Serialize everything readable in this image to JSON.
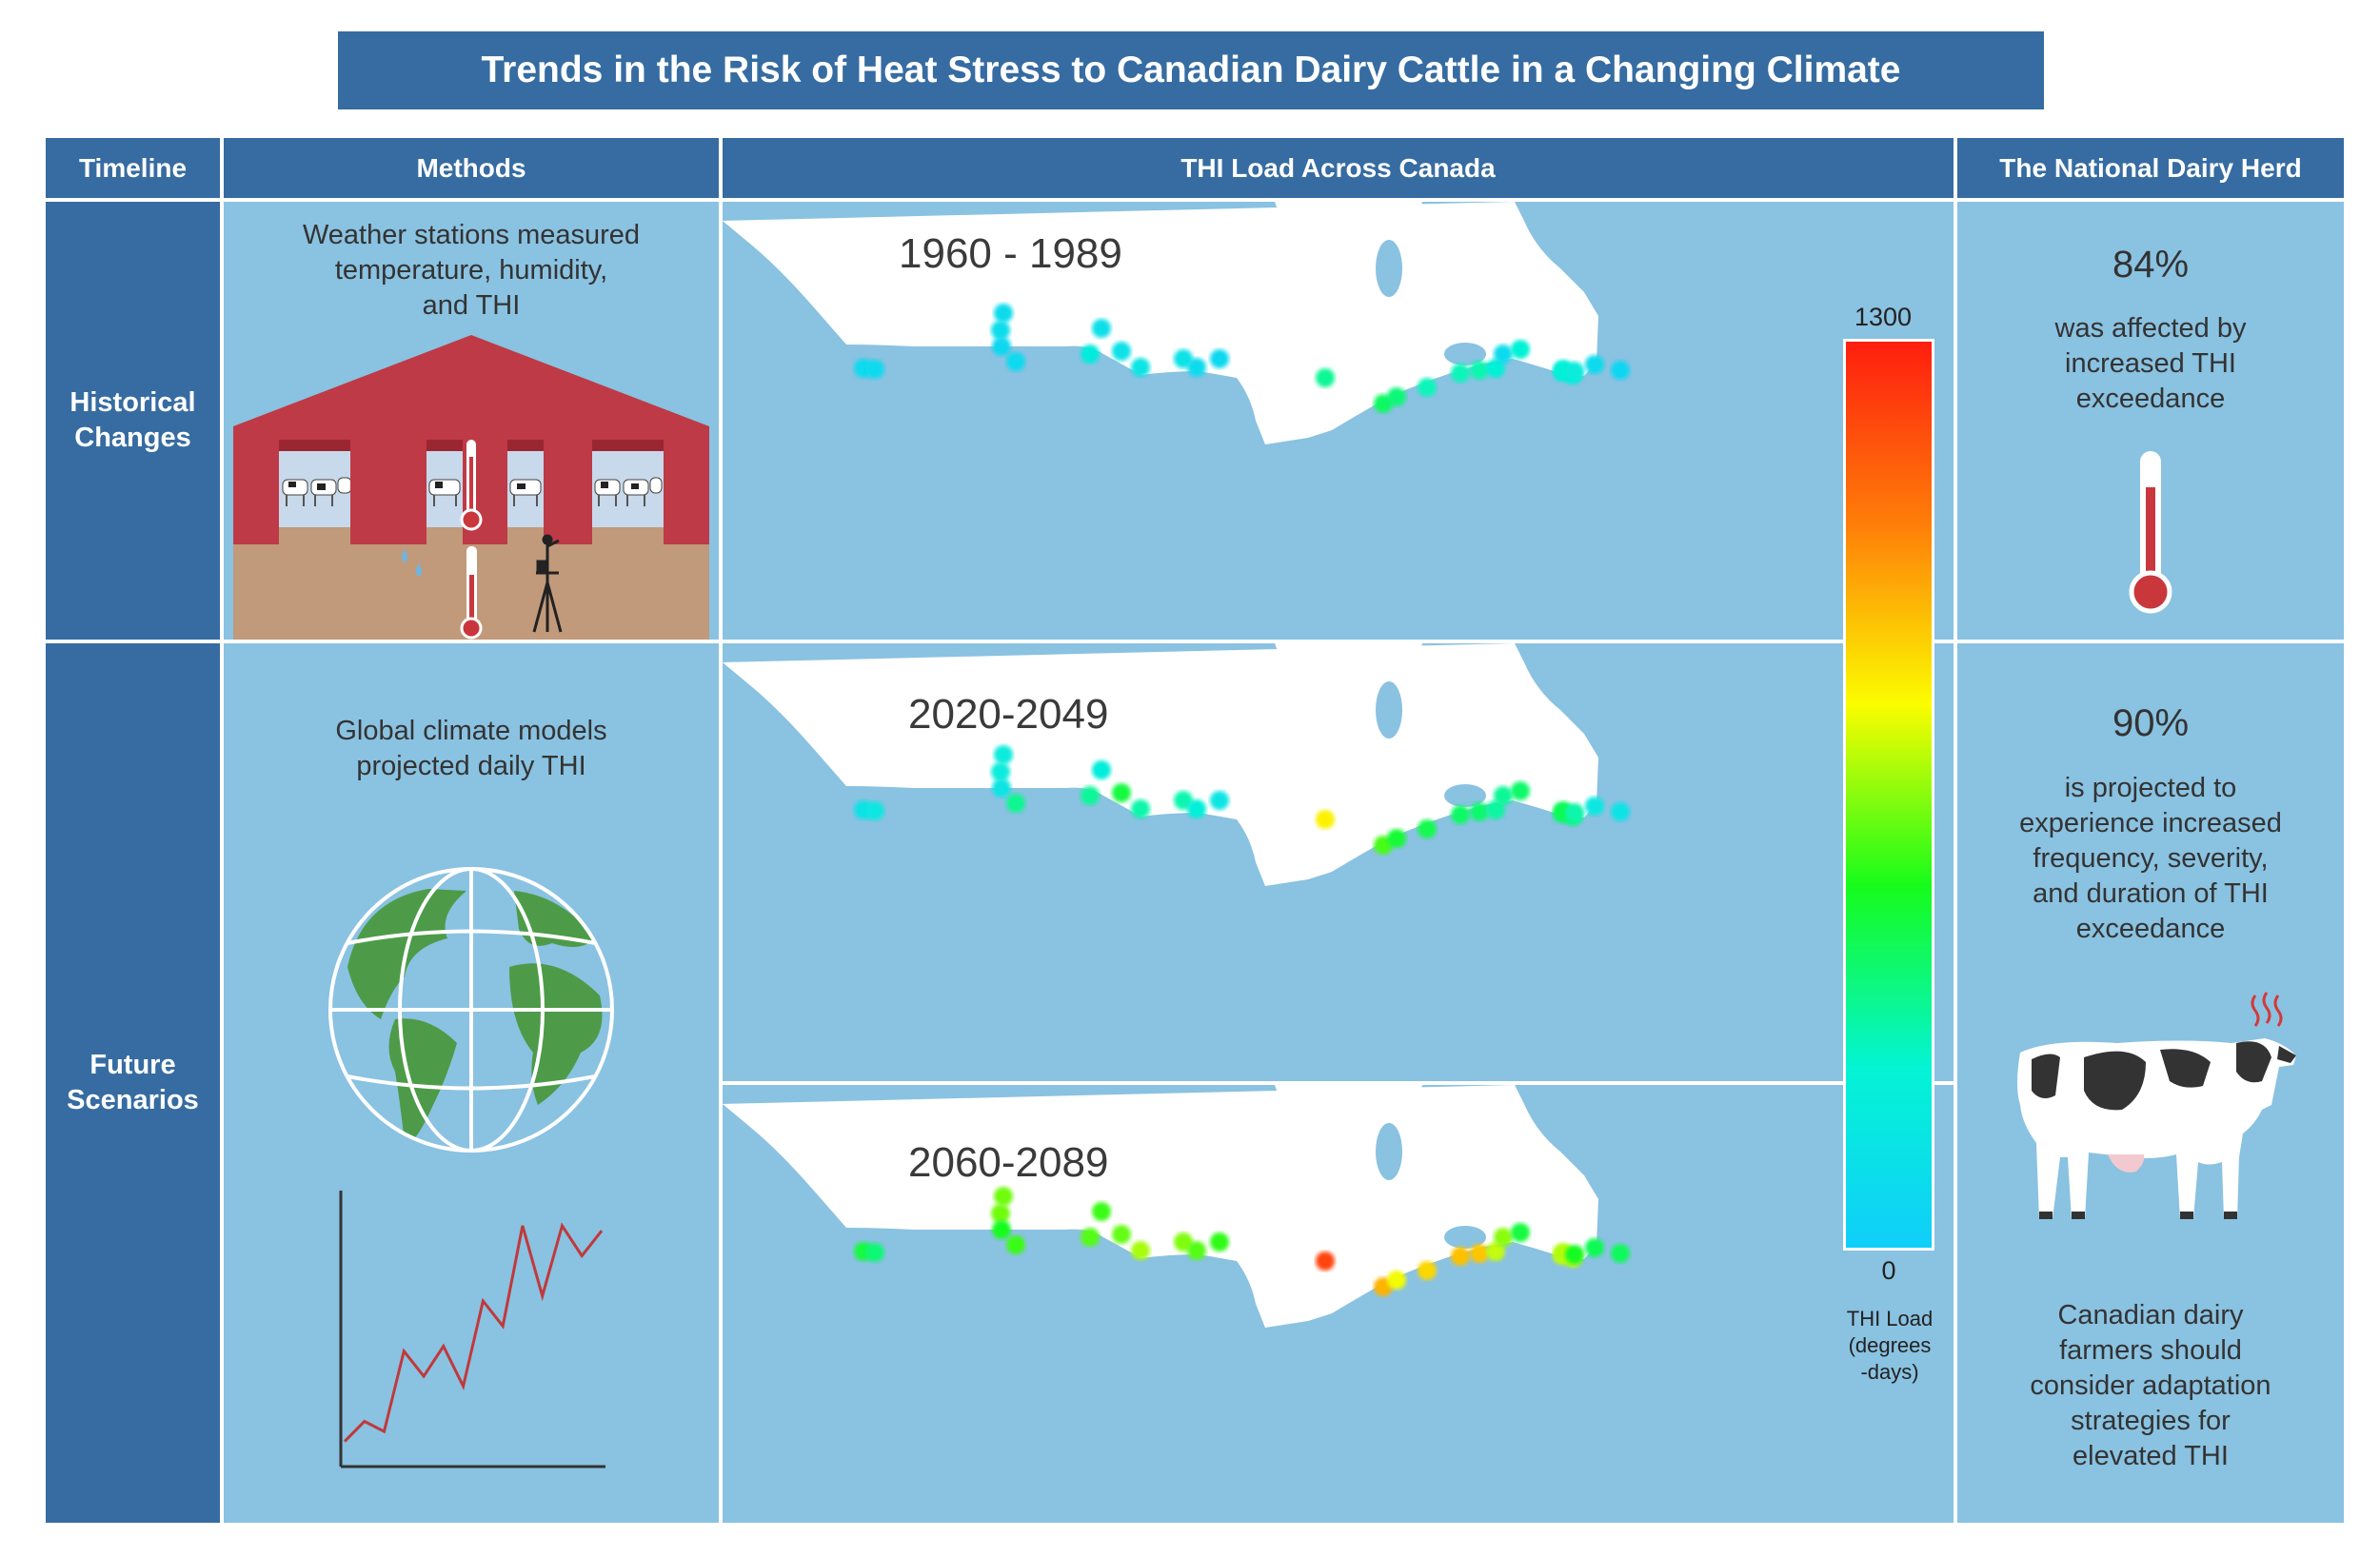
{
  "title": "Trends in the Risk of Heat Stress to Canadian Dairy Cattle in a Changing Climate",
  "headers": {
    "timeline": "Timeline",
    "methods": "Methods",
    "thi_load": "THI Load Across Canada",
    "herd": "The National Dairy Herd"
  },
  "rows": {
    "historical": [
      "Historical",
      "Changes"
    ],
    "future": [
      "Future",
      "Scenarios"
    ]
  },
  "methods": {
    "historical": [
      "Weather stations measured",
      "temperature, humidity,",
      "and THI"
    ],
    "future": [
      "Global climate models",
      "projected daily THI"
    ]
  },
  "maps": {
    "periods": [
      "1960 - 1989",
      "2020-2049",
      "2060-2089"
    ],
    "station_thi": {
      "1960 - 1989": [
        80,
        82,
        92,
        100,
        68,
        80,
        118,
        208,
        130,
        148,
        138,
        90,
        70,
        350,
        420,
        390,
        295,
        298,
        312,
        240,
        90,
        245,
        218,
        225,
        232,
        202,
        82,
        52
      ],
      "2020-2049": [
        135,
        170,
        200,
        205,
        160,
        355,
        210,
        345,
        470,
        318,
        310,
        230,
        160,
        800,
        575,
        485,
        445,
        415,
        405,
        330,
        345,
        408,
        402,
        372,
        440,
        318,
        172,
        145
      ],
      "2060-2089": [
        470,
        395,
        620,
        622,
        520,
        560,
        560,
        590,
        608,
        685,
        640,
        590,
        545,
        1195,
        930,
        770,
        855,
        900,
        890,
        715,
        652,
        470,
        710,
        690,
        695,
        510,
        440,
        430
      ]
    }
  },
  "legend": {
    "max": "1300",
    "min": "0",
    "label": [
      "THI Load",
      "(degrees",
      "-days)"
    ],
    "colors": [
      "#ff1e0f",
      "#fe7d09",
      "#fcfc00",
      "#17fc1b",
      "#04f4d4",
      "#10cefa"
    ]
  },
  "herd": {
    "historical_pct": "84%",
    "historical_text": [
      "was affected by",
      "increased THI",
      "exceedance"
    ],
    "future_pct": "90%",
    "future_text": [
      "is projected to",
      "experience increased",
      "frequency, severity,",
      "and duration of THI",
      "exceedance"
    ],
    "advice": [
      "Canadian dairy",
      "farmers should",
      "consider adaptation",
      "strategies for",
      "elevated THI"
    ]
  },
  "colors": {
    "header": "#366ca1",
    "panel": "#8ac2e1",
    "barn": "#be3a46",
    "ground": "#c09a7b",
    "land": "#4d9b48",
    "graph_line": "#c0393c"
  },
  "chart_data": {
    "type": "line",
    "title": "",
    "xlabel": "",
    "ylabel": "",
    "x": [
      1,
      2,
      3,
      4,
      5,
      6,
      7,
      8,
      9,
      10,
      11,
      12,
      13,
      14
    ],
    "values": [
      5,
      9,
      7,
      23,
      18,
      24,
      16,
      33,
      28,
      48,
      34,
      48,
      42,
      47
    ],
    "ylim": [
      0,
      55
    ]
  }
}
